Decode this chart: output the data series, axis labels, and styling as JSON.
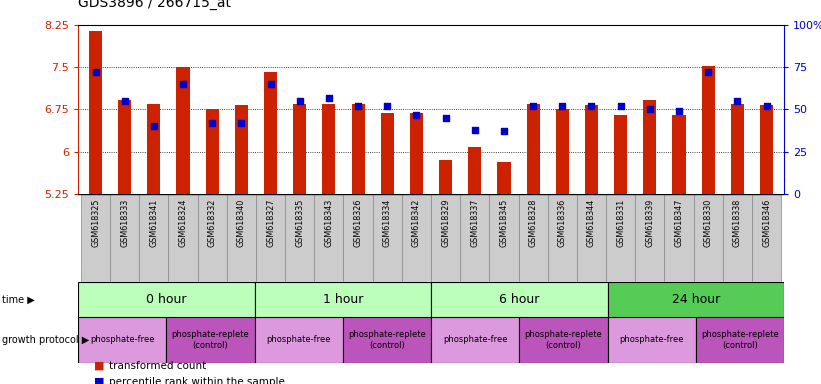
{
  "title": "GDS3896 / 266715_at",
  "samples": [
    "GSM618325",
    "GSM618333",
    "GSM618341",
    "GSM618324",
    "GSM618332",
    "GSM618340",
    "GSM618327",
    "GSM618335",
    "GSM618343",
    "GSM618326",
    "GSM618334",
    "GSM618342",
    "GSM618329",
    "GSM618337",
    "GSM618345",
    "GSM618328",
    "GSM618336",
    "GSM618344",
    "GSM618331",
    "GSM618339",
    "GSM618347",
    "GSM618330",
    "GSM618338",
    "GSM618346"
  ],
  "transformed_count": [
    8.15,
    6.92,
    6.85,
    7.5,
    6.75,
    6.82,
    7.42,
    6.85,
    6.85,
    6.85,
    6.68,
    6.68,
    5.85,
    6.08,
    5.82,
    6.85,
    6.75,
    6.82,
    6.65,
    6.92,
    6.65,
    7.52,
    6.85,
    6.82
  ],
  "percentile_rank": [
    72,
    55,
    40,
    65,
    42,
    42,
    65,
    55,
    57,
    52,
    52,
    47,
    45,
    38,
    37,
    52,
    52,
    52,
    52,
    50,
    49,
    72,
    55,
    52
  ],
  "ylim_left": [
    5.25,
    8.25
  ],
  "ylim_right": [
    0,
    100
  ],
  "yticks_left": [
    5.25,
    6.0,
    6.75,
    7.5,
    8.25
  ],
  "yticks_right": [
    0,
    25,
    50,
    75,
    100
  ],
  "ytick_labels_left": [
    "5.25",
    "6",
    "6.75",
    "7.5",
    "8.25"
  ],
  "ytick_labels_right": [
    "0",
    "25",
    "50",
    "75",
    "100%"
  ],
  "bar_color": "#cc2200",
  "dot_color": "#0000cc",
  "bar_bottom": 5.25,
  "time_groups": [
    {
      "label": "0 hour",
      "start": 0,
      "end": 6,
      "color": "#bbffbb"
    },
    {
      "label": "1 hour",
      "start": 6,
      "end": 12,
      "color": "#bbffbb"
    },
    {
      "label": "6 hour",
      "start": 12,
      "end": 18,
      "color": "#bbffbb"
    },
    {
      "label": "24 hour",
      "start": 18,
      "end": 24,
      "color": "#55cc55"
    }
  ],
  "protocol_groups": [
    {
      "label": "phosphate-free",
      "start": 0,
      "end": 3,
      "color": "#cc77cc"
    },
    {
      "label": "phosphate-replete\n(control)",
      "start": 3,
      "end": 6,
      "color": "#cc77cc"
    },
    {
      "label": "phosphate-free",
      "start": 6,
      "end": 9,
      "color": "#cc77cc"
    },
    {
      "label": "phosphate-replete\n(control)",
      "start": 9,
      "end": 12,
      "color": "#cc77cc"
    },
    {
      "label": "phosphate-free",
      "start": 12,
      "end": 15,
      "color": "#cc77cc"
    },
    {
      "label": "phosphate-replete\n(control)",
      "start": 15,
      "end": 18,
      "color": "#cc77cc"
    },
    {
      "label": "phosphate-free",
      "start": 18,
      "end": 21,
      "color": "#cc77cc"
    },
    {
      "label": "phosphate-replete\n(control)",
      "start": 21,
      "end": 24,
      "color": "#cc77cc"
    }
  ],
  "protocol_replete_indices": [
    1,
    3,
    5,
    7
  ],
  "grid_lines": [
    6.0,
    6.75,
    7.5
  ],
  "background_color": "#ffffff",
  "plot_bg": "#ffffff",
  "sample_label_bg": "#cccccc",
  "sample_label_border": "#888888"
}
